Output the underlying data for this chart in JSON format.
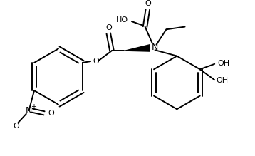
{
  "bg_color": "#ffffff",
  "line_color": "#000000",
  "bond_lw": 1.4,
  "font_size": 8,
  "font_size_small": 6,
  "figsize": [
    3.58,
    2.19
  ],
  "dpi": 100,
  "xlim": [
    0,
    358
  ],
  "ylim": [
    0,
    219
  ]
}
